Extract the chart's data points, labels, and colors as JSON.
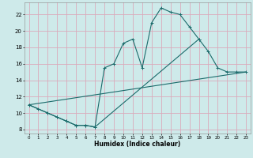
{
  "xlabel": "Humidex (Indice chaleur)",
  "bg_color": "#ceeaea",
  "grid_color": "#dbaabb",
  "line_color": "#1a6b6b",
  "xlim": [
    -0.5,
    23.5
  ],
  "ylim": [
    7.5,
    23.5
  ],
  "xticks": [
    0,
    1,
    2,
    3,
    4,
    5,
    6,
    7,
    8,
    9,
    10,
    11,
    12,
    13,
    14,
    15,
    16,
    17,
    18,
    19,
    20,
    21,
    22,
    23
  ],
  "yticks": [
    8,
    10,
    12,
    14,
    16,
    18,
    20,
    22
  ],
  "curve1_x": [
    0,
    1,
    2,
    3,
    4,
    5,
    6,
    7,
    8,
    9,
    10,
    11,
    12,
    13,
    14,
    15,
    16,
    17,
    18
  ],
  "curve1_y": [
    11,
    10.5,
    10,
    9.5,
    9,
    8.5,
    8.5,
    8.3,
    15.5,
    16.0,
    18.5,
    19.0,
    15.5,
    21.0,
    22.8,
    22.3,
    22.0,
    20.5,
    19.0
  ],
  "curve2_x": [
    0,
    2,
    3,
    4,
    5,
    6,
    7,
    18,
    19,
    20,
    21,
    22,
    23
  ],
  "curve2_y": [
    11,
    10,
    9.5,
    9.0,
    8.5,
    8.5,
    8.3,
    19.0,
    17.5,
    15.5,
    15.0,
    15.0,
    15.0
  ],
  "curve3_x": [
    0,
    23
  ],
  "curve3_y": [
    11,
    15.0
  ]
}
